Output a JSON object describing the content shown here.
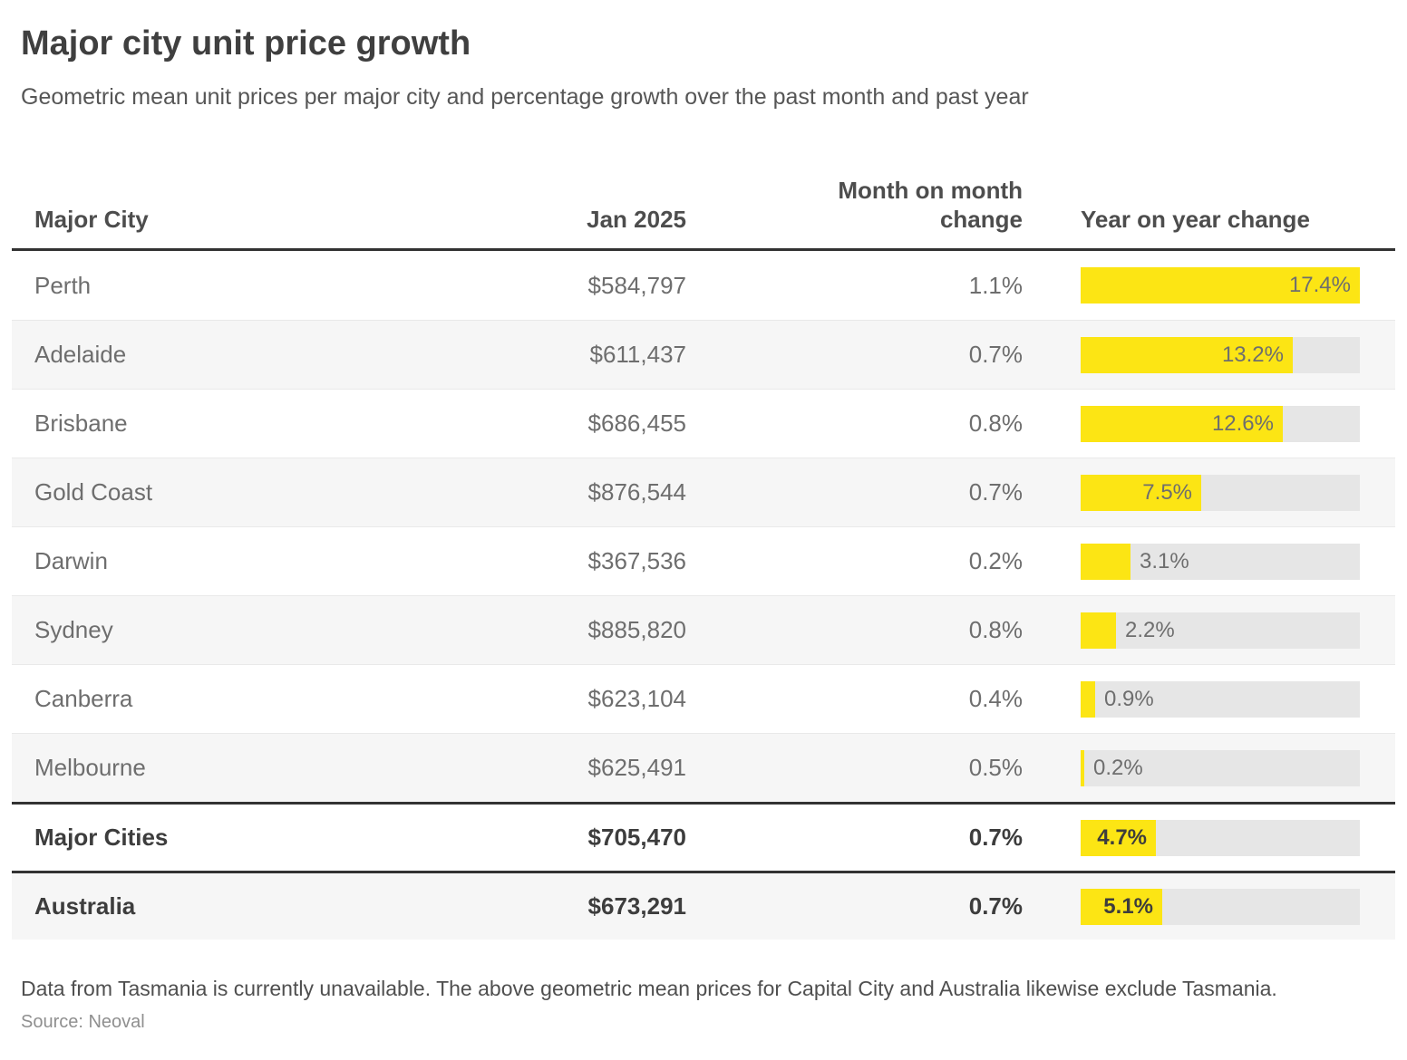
{
  "header": {
    "title": "Major city unit price growth",
    "subtitle": "Geometric mean unit prices per major city and percentage growth over the past month and past year"
  },
  "columns": {
    "city": "Major City",
    "price": "Jan 2025",
    "mom": "Month on month\nchange",
    "yoy": "Year on year change"
  },
  "table": {
    "bar": {
      "max": 17.4,
      "track_width": 308
    },
    "rows": [
      {
        "city": "Perth",
        "price": "$584,797",
        "mom": "1.1%",
        "yoy": 17.4,
        "yoy_label": "17.4%"
      },
      {
        "city": "Adelaide",
        "price": "$611,437",
        "mom": "0.7%",
        "yoy": 13.2,
        "yoy_label": "13.2%"
      },
      {
        "city": "Brisbane",
        "price": "$686,455",
        "mom": "0.8%",
        "yoy": 12.6,
        "yoy_label": "12.6%"
      },
      {
        "city": "Gold Coast",
        "price": "$876,544",
        "mom": "0.7%",
        "yoy": 7.5,
        "yoy_label": "7.5%"
      },
      {
        "city": "Darwin",
        "price": "$367,536",
        "mom": "0.2%",
        "yoy": 3.1,
        "yoy_label": "3.1%"
      },
      {
        "city": "Sydney",
        "price": "$885,820",
        "mom": "0.8%",
        "yoy": 2.2,
        "yoy_label": "2.2%"
      },
      {
        "city": "Canberra",
        "price": "$623,104",
        "mom": "0.4%",
        "yoy": 0.9,
        "yoy_label": "0.9%"
      },
      {
        "city": "Melbourne",
        "price": "$625,491",
        "mom": "0.5%",
        "yoy": 0.2,
        "yoy_label": "0.2%"
      },
      {
        "city": "Major Cities",
        "price": "$705,470",
        "mom": "0.7%",
        "yoy": 4.7,
        "yoy_label": "4.7%",
        "bold": true,
        "separator_top": true
      },
      {
        "city": "Australia",
        "price": "$673,291",
        "mom": "0.7%",
        "yoy": 5.1,
        "yoy_label": "5.1%",
        "bold": true,
        "separator_top": true
      }
    ]
  },
  "colors": {
    "bar_fill": "#FCE514",
    "bar_track": "#E6E6E6",
    "stripe": "#F6F6F6",
    "separator": "#323232"
  },
  "footnote": "Data from Tasmania is currently unavailable. The above geometric mean prices for Capital City and Australia likewise exclude Tasmania.",
  "source": "Source: Neoval",
  "chart_data": {
    "type": "bar",
    "title": "Major city unit price growth",
    "subtitle": "Geometric mean unit prices per major city and percentage growth over the past month and past year",
    "categories": [
      "Perth",
      "Adelaide",
      "Brisbane",
      "Gold Coast",
      "Darwin",
      "Sydney",
      "Canberra",
      "Melbourne",
      "Major Cities",
      "Australia"
    ],
    "series": [
      {
        "name": "Jan 2025 geometric mean unit price (AUD)",
        "values": [
          584797,
          611437,
          686455,
          876544,
          367536,
          885820,
          623104,
          625491,
          705470,
          673291
        ]
      },
      {
        "name": "Month on month change (%)",
        "values": [
          1.1,
          0.7,
          0.8,
          0.7,
          0.2,
          0.8,
          0.4,
          0.5,
          0.7,
          0.7
        ]
      },
      {
        "name": "Year on year change (%)",
        "values": [
          17.4,
          13.2,
          12.6,
          7.5,
          3.1,
          2.2,
          0.9,
          0.2,
          4.7,
          5.1
        ]
      }
    ],
    "bar_series_plotted": "Year on year change (%)",
    "bar_axis_range": [
      0,
      17.4
    ],
    "orientation": "horizontal",
    "grid": false,
    "legend_position": "none",
    "source": "Neoval"
  }
}
